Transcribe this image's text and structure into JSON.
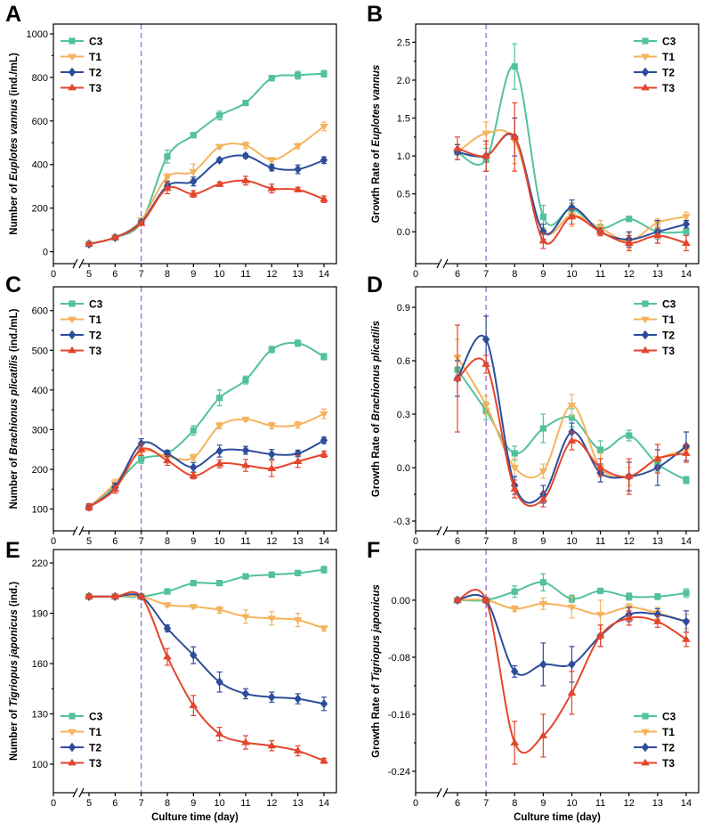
{
  "figure": {
    "title": ""
  },
  "style": {
    "reference_line_color": "#9b5cc8",
    "axis_color": "#000000"
  },
  "series_style": {
    "C3": {
      "color": "#52c29b",
      "marker": "square"
    },
    "T1": {
      "color": "#f5b35c",
      "marker": "triangle-down"
    },
    "T2": {
      "color": "#2d4d9b",
      "marker": "diamond"
    },
    "T3": {
      "color": "#e4452c",
      "marker": "triangle-up"
    }
  },
  "chart_data": [
    {
      "panel_label": "A",
      "type": "line",
      "ylabel_prefix": "Number of ",
      "ylabel_species": "Euplotes vannus",
      "ylabel_suffix": " (ind./mL)",
      "x_origin_label": "0",
      "x": [
        5,
        6,
        7,
        8,
        9,
        10,
        11,
        12,
        13,
        14
      ],
      "ylim": [
        -55,
        1045
      ],
      "y_ticks": [
        0,
        200,
        400,
        600,
        800,
        1000
      ],
      "y_tick_labels": [
        "0",
        "200",
        "400",
        "600",
        "800",
        "1000"
      ],
      "reference_line_x": 7,
      "legend_position": "top-left",
      "series": [
        {
          "name": "C3",
          "values": [
            35,
            65,
            135,
            437,
            535,
            625,
            683,
            797,
            810,
            817
          ],
          "errors": [
            5,
            6,
            8,
            30,
            10,
            20,
            10,
            12,
            18,
            15
          ]
        },
        {
          "name": "T1",
          "values": [
            35,
            65,
            145,
            343,
            367,
            482,
            488,
            422,
            485,
            575
          ],
          "errors": [
            5,
            6,
            8,
            15,
            35,
            10,
            15,
            10,
            12,
            20
          ]
        },
        {
          "name": "T2",
          "values": [
            35,
            65,
            135,
            302,
            322,
            420,
            440,
            386,
            378,
            420
          ],
          "errors": [
            5,
            6,
            8,
            20,
            20,
            10,
            10,
            15,
            20,
            15
          ]
        },
        {
          "name": "T3",
          "values": [
            35,
            65,
            130,
            291,
            265,
            310,
            326,
            290,
            285,
            241
          ],
          "errors": [
            5,
            6,
            8,
            25,
            15,
            10,
            20,
            20,
            10,
            15
          ]
        }
      ]
    },
    {
      "panel_label": "B",
      "type": "line",
      "ylabel_prefix": "Growth Rate of ",
      "ylabel_species": "Euplotes vannus",
      "x_origin_label": "0",
      "x": [
        6,
        7,
        8,
        9,
        10,
        11,
        12,
        13,
        14
      ],
      "ylim": [
        -0.42,
        2.74
      ],
      "y_ticks": [
        0,
        0.5,
        1.0,
        1.5,
        2.0,
        2.5
      ],
      "y_tick_labels": [
        "0.0",
        "0.5",
        "1.0",
        "1.5",
        "2.0",
        "2.5"
      ],
      "reference_line_x": 7,
      "legend_position": "top-right",
      "series": [
        {
          "name": "C3",
          "values": [
            1.05,
            0.95,
            2.18,
            0.2,
            0.3,
            0.05,
            0.17,
            0.0,
            0.0
          ],
          "errors": [
            0.1,
            0.15,
            0.3,
            0.15,
            0.08,
            0.05,
            0.03,
            0.1,
            0.03
          ]
        },
        {
          "name": "T1",
          "values": [
            1.05,
            1.3,
            1.2,
            0.0,
            0.22,
            0.05,
            -0.12,
            0.12,
            0.2
          ],
          "errors": [
            0.1,
            0.15,
            0.3,
            0.1,
            0.15,
            0.1,
            0.1,
            0.05,
            0.06
          ]
        },
        {
          "name": "T2",
          "values": [
            1.05,
            1.0,
            1.25,
            0.0,
            0.32,
            0.0,
            -0.1,
            0.0,
            0.1
          ],
          "errors": [
            0.1,
            0.2,
            0.25,
            0.1,
            0.1,
            0.05,
            0.1,
            0.15,
            0.05
          ]
        },
        {
          "name": "T3",
          "values": [
            1.1,
            1.0,
            1.25,
            -0.12,
            0.2,
            0.0,
            -0.15,
            -0.05,
            -0.15
          ],
          "errors": [
            0.15,
            0.2,
            0.45,
            0.1,
            0.1,
            0.05,
            0.1,
            0.1,
            0.1
          ]
        }
      ]
    },
    {
      "panel_label": "C",
      "type": "line",
      "ylabel_prefix": "Number of ",
      "ylabel_species": "Brachionus plicatilis",
      "ylabel_suffix": " (ind./mL)",
      "x_origin_label": "0",
      "x": [
        5,
        6,
        7,
        8,
        9,
        10,
        11,
        12,
        13,
        14
      ],
      "ylim": [
        45,
        660
      ],
      "y_ticks": [
        100,
        200,
        300,
        400,
        500,
        600
      ],
      "y_tick_labels": [
        "100",
        "200",
        "300",
        "400",
        "500",
        "600"
      ],
      "reference_line_x": 7,
      "legend_position": "top-left",
      "series": [
        {
          "name": "C3",
          "values": [
            105,
            160,
            225,
            240,
            298,
            380,
            425,
            502,
            518,
            484
          ],
          "errors": [
            8,
            10,
            10,
            8,
            12,
            20,
            10,
            8,
            8,
            8
          ]
        },
        {
          "name": "T1",
          "values": [
            105,
            165,
            245,
            232,
            230,
            310,
            326,
            310,
            312,
            340
          ],
          "errors": [
            8,
            10,
            10,
            8,
            8,
            8,
            5,
            8,
            8,
            12
          ]
        },
        {
          "name": "T2",
          "values": [
            105,
            155,
            265,
            240,
            205,
            246,
            248,
            238,
            240,
            273
          ],
          "errors": [
            8,
            10,
            12,
            8,
            12,
            15,
            10,
            12,
            8,
            8
          ]
        },
        {
          "name": "T3",
          "values": [
            105,
            150,
            250,
            222,
            184,
            214,
            210,
            202,
            220,
            238
          ],
          "errors": [
            8,
            10,
            15,
            12,
            8,
            10,
            15,
            20,
            15,
            8
          ]
        }
      ]
    },
    {
      "panel_label": "D",
      "type": "line",
      "ylabel_prefix": "Growth Rate of ",
      "ylabel_species": "Brachionus plicatilis",
      "x_origin_label": "0",
      "x": [
        6,
        7,
        8,
        9,
        10,
        11,
        12,
        13,
        14
      ],
      "ylim": [
        -0.355,
        1.015
      ],
      "y_ticks": [
        -0.3,
        0.0,
        0.3,
        0.6,
        0.9
      ],
      "y_tick_labels": [
        "-0.3",
        "0.0",
        "0.3",
        "0.6",
        "0.9"
      ],
      "reference_line_x": 7,
      "legend_position": "top-right",
      "series": [
        {
          "name": "C3",
          "values": [
            0.55,
            0.32,
            0.08,
            0.22,
            0.28,
            0.1,
            0.18,
            0.02,
            -0.07
          ],
          "errors": [
            0.05,
            0.05,
            0.04,
            0.08,
            0.05,
            0.05,
            0.03,
            0.04,
            0.02
          ]
        },
        {
          "name": "T1",
          "values": [
            0.62,
            0.35,
            0.0,
            -0.02,
            0.35,
            0.0,
            -0.05,
            0.05,
            0.1
          ],
          "errors": [
            0.1,
            0.05,
            0.05,
            0.04,
            0.06,
            0.08,
            0.05,
            0.08,
            0.03
          ]
        },
        {
          "name": "T2",
          "values": [
            0.5,
            0.72,
            -0.1,
            -0.15,
            0.2,
            -0.03,
            -0.05,
            0.0,
            0.12
          ],
          "errors": [
            0.1,
            0.13,
            0.05,
            0.05,
            0.05,
            0.05,
            0.08,
            0.1,
            0.08
          ]
        },
        {
          "name": "T3",
          "values": [
            0.5,
            0.58,
            -0.12,
            -0.18,
            0.15,
            0.0,
            -0.05,
            0.05,
            0.08
          ],
          "errors": [
            0.3,
            0.05,
            0.05,
            0.04,
            0.05,
            0.05,
            0.1,
            0.08,
            0.05
          ]
        }
      ]
    },
    {
      "panel_label": "E",
      "type": "line",
      "ylabel_prefix": "Number of ",
      "ylabel_species": "Tigriopus japonicus",
      "ylabel_suffix": " (ind.)",
      "xlabel": "Culture time (day)",
      "x_origin_label": "0",
      "x": [
        5,
        6,
        7,
        8,
        9,
        10,
        11,
        12,
        13,
        14
      ],
      "ylim": [
        83,
        228
      ],
      "y_ticks": [
        100,
        130,
        160,
        190,
        220
      ],
      "y_tick_labels": [
        "100",
        "130",
        "160",
        "190",
        "220"
      ],
      "reference_line_x": 7,
      "legend_position": "bottom-left",
      "series": [
        {
          "name": "C3",
          "values": [
            200,
            200,
            200,
            203,
            208,
            208,
            212,
            213,
            214,
            216
          ],
          "errors": [
            1,
            1,
            1,
            1,
            1,
            1,
            1.5,
            1.5,
            1.5,
            2
          ]
        },
        {
          "name": "T1",
          "values": [
            200,
            200,
            200,
            195,
            194,
            192,
            188,
            187,
            186,
            181
          ],
          "errors": [
            1,
            1,
            1,
            1,
            1,
            2,
            4,
            4,
            4,
            1.5
          ]
        },
        {
          "name": "T2",
          "values": [
            200,
            200,
            200,
            181,
            165,
            149,
            142,
            140,
            139,
            136
          ],
          "errors": [
            1,
            1,
            1,
            2,
            5,
            6,
            3,
            3,
            3,
            4
          ]
        },
        {
          "name": "T3",
          "values": [
            200,
            200,
            200,
            164,
            135,
            118,
            113,
            111,
            108,
            102
          ],
          "errors": [
            1,
            1,
            1,
            5,
            6,
            4,
            4,
            3,
            3,
            1.5
          ]
        }
      ]
    },
    {
      "panel_label": "F",
      "type": "line",
      "ylabel_prefix": "Growth Rate of ",
      "ylabel_species": "Tigriopus japonicus",
      "xlabel": "Culture time (day)",
      "x_origin_label": "0",
      "x": [
        6,
        7,
        8,
        9,
        10,
        11,
        12,
        13,
        14
      ],
      "ylim": [
        -0.27,
        0.071
      ],
      "y_ticks": [
        -0.24,
        -0.16,
        -0.08,
        0.0
      ],
      "y_tick_labels": [
        "-0.24",
        "-0.16",
        "-0.08",
        "0.00"
      ],
      "reference_line_x": 7,
      "legend_position": "bottom-right",
      "series": [
        {
          "name": "C3",
          "values": [
            0.0,
            0.0,
            0.012,
            0.025,
            0.002,
            0.013,
            0.005,
            0.005,
            0.01
          ],
          "errors": [
            0.002,
            0.002,
            0.008,
            0.012,
            0.005,
            0.003,
            0.005,
            0.004,
            0.006
          ]
        },
        {
          "name": "T1",
          "values": [
            0.0,
            0.0,
            -0.012,
            -0.005,
            -0.01,
            -0.02,
            -0.01,
            -0.018,
            -0.03
          ],
          "errors": [
            0.002,
            0.002,
            0.004,
            0.008,
            0.015,
            0.02,
            0.005,
            0.008,
            0.01
          ]
        },
        {
          "name": "T2",
          "values": [
            0.0,
            0.0,
            -0.1,
            -0.09,
            -0.09,
            -0.05,
            -0.02,
            -0.02,
            -0.03
          ],
          "errors": [
            0.002,
            0.002,
            0.008,
            0.03,
            0.025,
            0.015,
            0.01,
            0.008,
            0.015
          ]
        },
        {
          "name": "T3",
          "values": [
            0.0,
            0.0,
            -0.2,
            -0.19,
            -0.13,
            -0.05,
            -0.025,
            -0.03,
            -0.055
          ],
          "errors": [
            0.002,
            0.002,
            0.03,
            0.03,
            0.03,
            0.015,
            0.01,
            0.008,
            0.01
          ]
        }
      ]
    }
  ]
}
